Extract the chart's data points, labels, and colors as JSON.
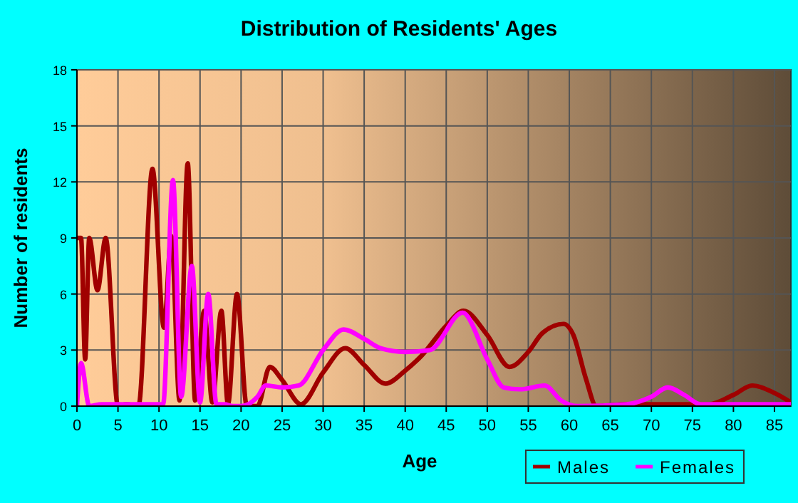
{
  "chart_data": {
    "type": "line",
    "title": "Distribution of Residents' Ages",
    "xlabel": "Age",
    "ylabel": "Number of residents",
    "xlim": [
      0,
      87
    ],
    "xticks": [
      0,
      5,
      10,
      15,
      20,
      25,
      30,
      35,
      40,
      45,
      50,
      55,
      60,
      65,
      70,
      75,
      80,
      85
    ],
    "ylim": [
      0,
      18
    ],
    "yticks": [
      0,
      3,
      6,
      9,
      12,
      15,
      18
    ],
    "grid": true,
    "legend": "bottom right",
    "marker": "none",
    "line_style": "solid",
    "series": [
      {
        "name": "Males",
        "color": "#a00000",
        "x": [
          0,
          0.5,
          1,
          1.5,
          2.5,
          3.5,
          5,
          6,
          7.5,
          9.2,
          10.6,
          11.5,
          12.5,
          13.5,
          14.4,
          15.5,
          16.5,
          17.6,
          18.4,
          19.5,
          20.7,
          22,
          23.5,
          25,
          27.3,
          30,
          32.7,
          35,
          37.6,
          40,
          42,
          45,
          47.1,
          50,
          52.7,
          55,
          56.7,
          59.3,
          60.5,
          62,
          63.3,
          67,
          72,
          77,
          80,
          82.3,
          85,
          87
        ],
        "values": [
          9,
          9,
          2.5,
          9,
          6.2,
          9,
          0,
          0.1,
          0,
          12.7,
          4.2,
          9.1,
          0.3,
          13,
          0.3,
          5.1,
          0.2,
          5.1,
          0.1,
          6,
          0,
          0,
          2.1,
          1.4,
          0.1,
          1.8,
          3.1,
          2.2,
          1.2,
          1.9,
          2.7,
          4.3,
          5.1,
          3.8,
          2.1,
          2.9,
          3.9,
          4.4,
          3.8,
          1.5,
          0,
          0.1,
          0.1,
          0.1,
          0.6,
          1.1,
          0.7,
          0.2
        ]
      },
      {
        "name": "Females",
        "color": "#ff00ff",
        "x": [
          0,
          0.5,
          1.5,
          3,
          5,
          8,
          10,
          10.5,
          11.7,
          12.7,
          14,
          15,
          16,
          17,
          18,
          19,
          20,
          22,
          23,
          25,
          27,
          30,
          32.5,
          35,
          37,
          40,
          43,
          47,
          50,
          52,
          54,
          57,
          59,
          61,
          67,
          70,
          72,
          74,
          76,
          80,
          87
        ],
        "values": [
          0,
          2.3,
          0,
          0.1,
          0.1,
          0.1,
          0.1,
          0.1,
          12.1,
          0.5,
          7.5,
          0.2,
          6,
          0.1,
          0.1,
          0,
          0,
          0.5,
          1.1,
          1,
          1.1,
          3,
          4.1,
          3.6,
          3.1,
          2.9,
          3,
          5,
          2.5,
          1,
          0.9,
          1.1,
          0.3,
          0,
          0.1,
          0.5,
          1,
          0.6,
          0.1,
          0.1,
          0.1
        ]
      }
    ]
  }
}
